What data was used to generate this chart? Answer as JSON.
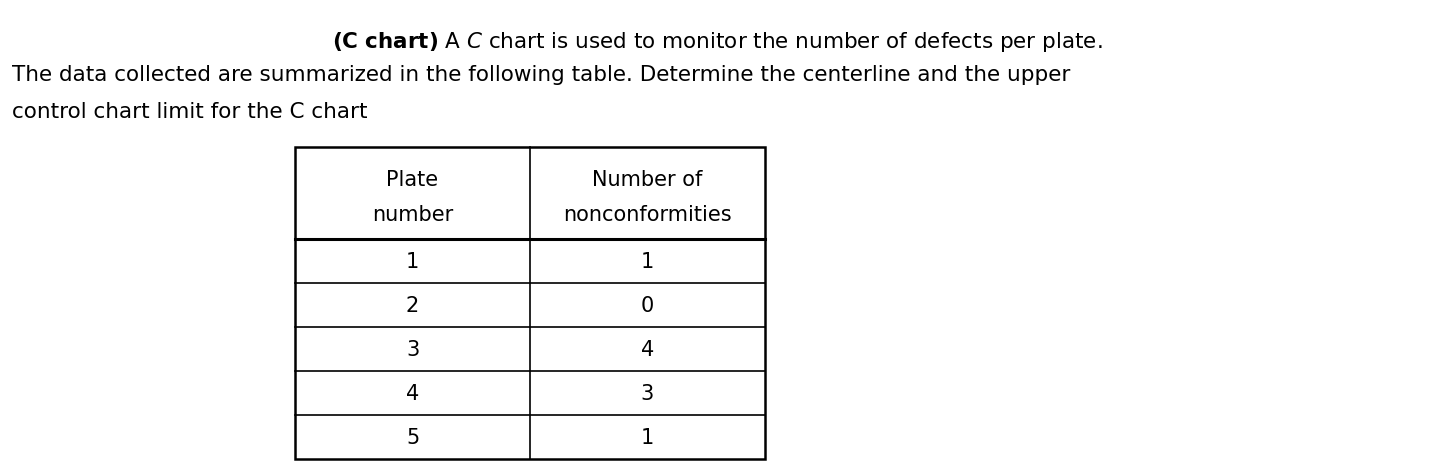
{
  "line1_bold": "(C chart)",
  "line1_rest": " A  C chart is used to monitor the number of defects per plate.",
  "line2": "The data collected are summarized in the following table. Determine the centerline and the upper",
  "line3": "control chart limit for the C chart",
  "col1_header_line1": "Plate",
  "col1_header_line2": "number",
  "col2_header_line1": "Number of",
  "col2_header_line2": "nonconformities",
  "plate_numbers": [
    1,
    2,
    3,
    4,
    5
  ],
  "nonconformities": [
    1,
    0,
    4,
    3,
    1
  ],
  "bg_color": "#ffffff",
  "text_color": "#000000",
  "font_size_body": 15.5,
  "font_size_table": 15,
  "fig_width": 14.34,
  "fig_height": 4.64,
  "dpi": 100
}
